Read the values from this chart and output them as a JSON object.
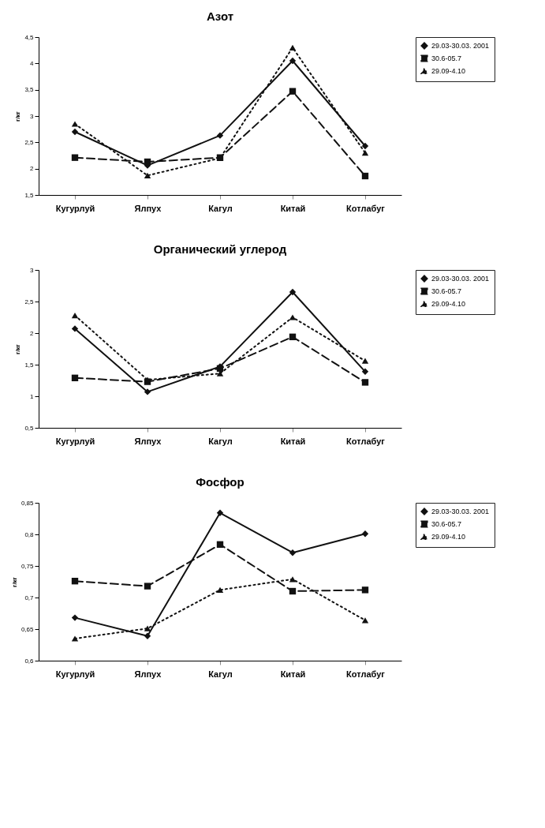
{
  "chart_data": [
    {
      "type": "line",
      "title": "Азот",
      "ylabel": "г/кг",
      "categories": [
        "Кугурлуй",
        "Ялпух",
        "Кагул",
        "Китай",
        "Котлабуг"
      ],
      "ylim": [
        1.5,
        4.5
      ],
      "yticks": [
        {
          "value": 1.5,
          "label": "1,5"
        },
        2,
        {
          "value": 2.5,
          "label": "2,5"
        },
        3,
        {
          "value": 3.5,
          "label": "3,5"
        },
        4,
        {
          "value": 4.5,
          "label": "4,5"
        }
      ],
      "grid": false,
      "legend": "right",
      "series": [
        {
          "name": "29.03-30.03. 2001",
          "color": "#111111",
          "marker": "diamond",
          "line_style": "solid",
          "values": [
            2.7,
            2.06,
            2.63,
            4.05,
            2.43
          ]
        },
        {
          "name": "30.6-05.7",
          "color": "#111111",
          "marker": "square",
          "line_style": "dashed",
          "values": [
            2.21,
            2.13,
            2.21,
            3.47,
            1.86
          ]
        },
        {
          "name": "29.09-4.10",
          "color": "#111111",
          "marker": "triangle",
          "line_style": "dotted",
          "values": [
            2.85,
            1.87,
            2.2,
            4.3,
            2.3
          ]
        }
      ]
    },
    {
      "type": "line",
      "title": "Органический углерод",
      "ylabel": "г/кг",
      "categories": [
        "Кугурлуй",
        "Ялпух",
        "Кагул",
        "Китай",
        "Котлабуг"
      ],
      "ylim": [
        0.5,
        3
      ],
      "yticks": [
        {
          "value": 0.5,
          "label": "0,5"
        },
        1,
        {
          "value": 1.5,
          "label": "1,5"
        },
        2,
        {
          "value": 2.5,
          "label": "2,5"
        },
        3
      ],
      "grid": false,
      "legend": "right",
      "series": [
        {
          "name": "29.03-30.03. 2001",
          "color": "#111111",
          "marker": "diamond",
          "line_style": "solid",
          "values": [
            2.07,
            1.07,
            1.47,
            2.65,
            1.39
          ]
        },
        {
          "name": "30.6-05.7",
          "color": "#111111",
          "marker": "square",
          "line_style": "dashed",
          "values": [
            1.29,
            1.23,
            1.44,
            1.94,
            1.22
          ]
        },
        {
          "name": "29.09-4.10",
          "color": "#111111",
          "marker": "triangle",
          "line_style": "dotted",
          "values": [
            2.28,
            1.26,
            1.36,
            2.25,
            1.56
          ]
        }
      ]
    },
    {
      "type": "line",
      "title": "Фосфор",
      "ylabel": "г/кг",
      "categories": [
        "Кугурлуй",
        "Ялпух",
        "Кагул",
        "Китай",
        "Котлабуг"
      ],
      "ylim": [
        0.6,
        0.85
      ],
      "yticks": [
        {
          "value": 0.6,
          "label": "0,6"
        },
        {
          "value": 0.65,
          "label": "0,65"
        },
        {
          "value": 0.7,
          "label": "0,7"
        },
        {
          "value": 0.75,
          "label": "0,75"
        },
        {
          "value": 0.8,
          "label": "0,8"
        },
        {
          "value": 0.85,
          "label": "0,85"
        }
      ],
      "grid": false,
      "legend": "right",
      "series": [
        {
          "name": "29.03-30.03. 2001",
          "color": "#111111",
          "marker": "diamond",
          "line_style": "solid",
          "values": [
            0.668,
            0.639,
            0.834,
            0.771,
            0.801
          ]
        },
        {
          "name": "30.6-05.7",
          "color": "#111111",
          "marker": "square",
          "line_style": "dashed",
          "values": [
            0.726,
            0.718,
            0.784,
            0.71,
            0.712
          ]
        },
        {
          "name": "29.09-4.10",
          "color": "#111111",
          "marker": "triangle",
          "line_style": "dotted",
          "values": [
            0.635,
            0.651,
            0.712,
            0.729,
            0.664
          ]
        }
      ]
    }
  ]
}
